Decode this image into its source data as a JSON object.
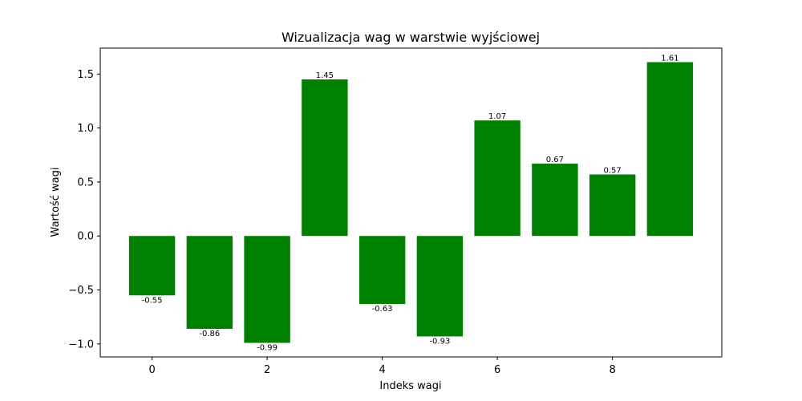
{
  "chart_data": {
    "type": "bar",
    "title": "Wizualizacja wag w warstwie wyjściowej",
    "xlabel": "Indeks wagi",
    "ylabel": "Wartość wagi",
    "x": [
      0,
      1,
      2,
      3,
      4,
      5,
      6,
      7,
      8,
      9
    ],
    "values": [
      -0.55,
      -0.86,
      -0.99,
      1.45,
      -0.63,
      -0.93,
      1.07,
      0.67,
      0.57,
      1.61
    ],
    "data_labels": [
      "-0.55",
      "-0.86",
      "-0.99",
      "1.45",
      "-0.63",
      "-0.93",
      "1.07",
      "0.67",
      "0.57",
      "1.61"
    ],
    "xticks": [
      0,
      2,
      4,
      6,
      8
    ],
    "xtick_labels": [
      "0",
      "2",
      "4",
      "6",
      "8"
    ],
    "yticks": [
      -1.0,
      -0.5,
      0.0,
      0.5,
      1.0,
      1.5
    ],
    "ytick_labels": [
      "−1.0",
      "−0.5",
      "0.0",
      "0.5",
      "1.0",
      "1.5"
    ],
    "xlim": [
      -0.9,
      9.9
    ],
    "ylim": [
      -1.12,
      1.74
    ],
    "grid": false,
    "legend": "none",
    "bar_color": "#008000"
  }
}
